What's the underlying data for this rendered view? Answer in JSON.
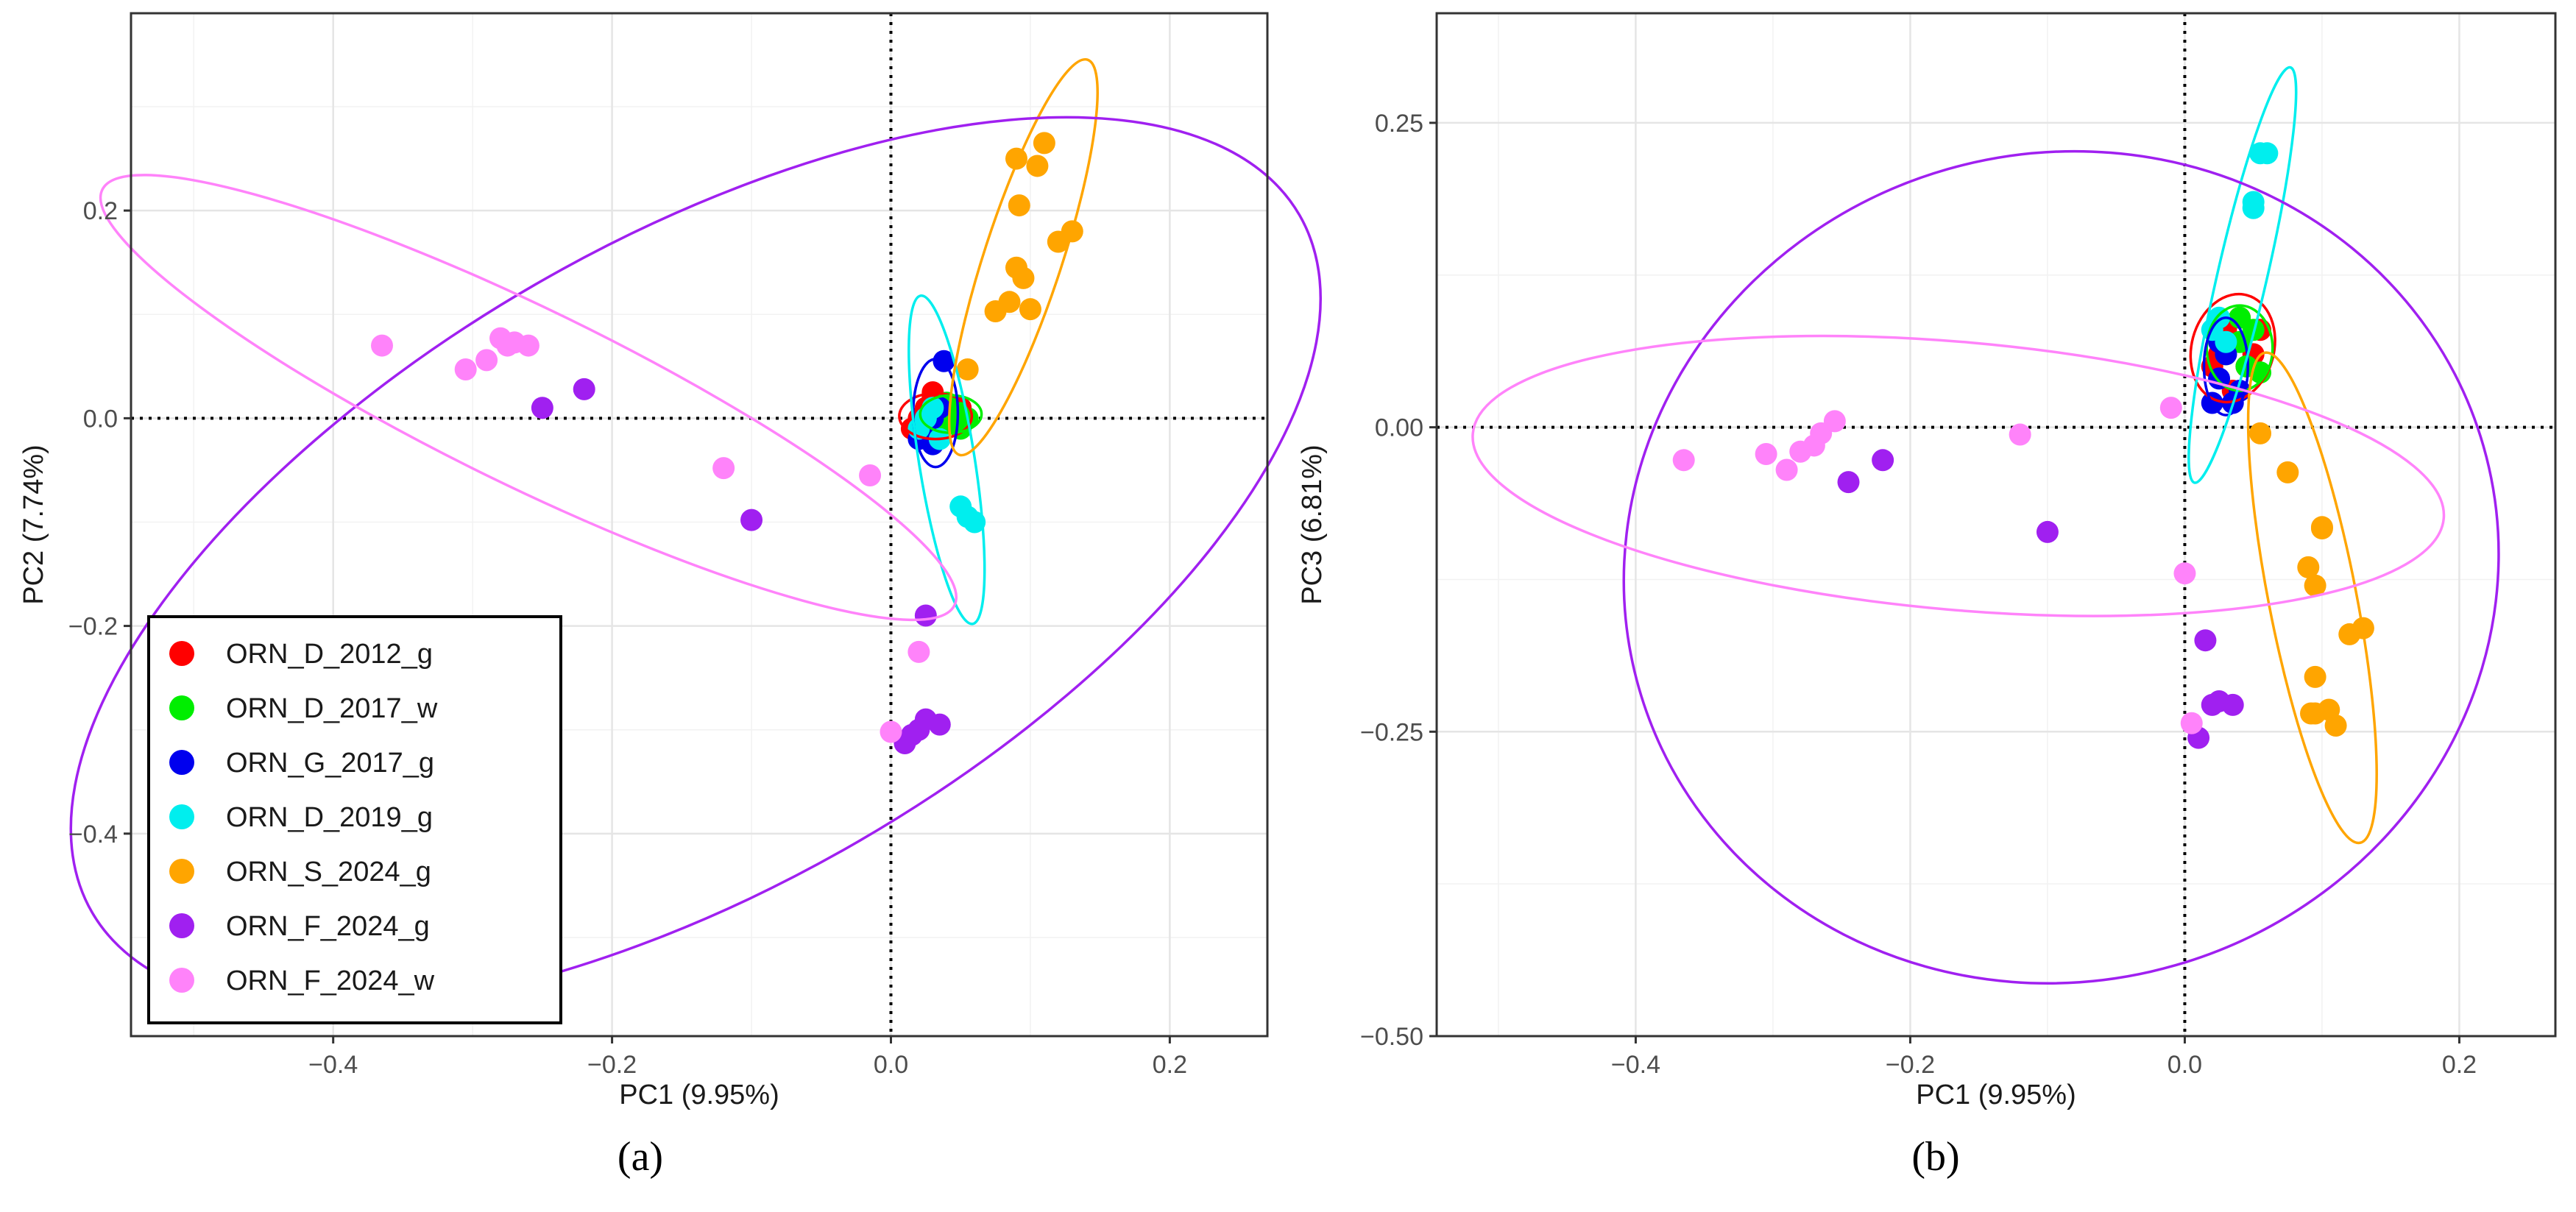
{
  "chart_data": [
    {
      "type": "scatter",
      "panel_label": "(a)",
      "panel_letter": "a",
      "xlabel": "PC1 (9.95%)",
      "ylabel": "PC2 (7.74%)",
      "xlim": [
        -0.545,
        0.27
      ],
      "ylim": [
        -0.595,
        0.39
      ],
      "xticks": [
        -0.4,
        -0.2,
        0.0,
        0.2
      ],
      "xtick_labels": [
        "−0.4",
        "−0.2",
        "0.0",
        "0.2"
      ],
      "yticks": [
        -0.4,
        -0.2,
        0.0,
        0.2
      ],
      "ytick_labels": [
        "−0.4",
        "−0.2",
        "0.0",
        "0.2"
      ],
      "xminor": [
        -0.5,
        -0.3,
        -0.1,
        0.1
      ],
      "yminor": [
        -0.5,
        -0.3,
        -0.1,
        0.1,
        0.3
      ],
      "grid": true,
      "reference_lines": {
        "x": 0,
        "y": 0,
        "style": "dotted"
      },
      "legend_position": "bottom-left",
      "series": [
        {
          "name": "ORN_D_2012_g",
          "color": "#FF0000",
          "x": [
            0.015,
            0.02,
            0.025,
            0.03,
            0.035,
            0.04,
            0.045,
            0.05,
            0.03,
            0.028
          ],
          "y": [
            -0.01,
            0.0,
            0.01,
            0.02,
            -0.005,
            0.01,
            0.0,
            0.01,
            0.025,
            -0.015
          ],
          "ellipse": {
            "cx": 0.032,
            "cy": 0.002,
            "rx": 0.026,
            "ry": 0.022,
            "angle": 0
          }
        },
        {
          "name": "ORN_D_2017_w",
          "color": "#00EE00",
          "x": [
            0.035,
            0.04,
            0.045,
            0.05,
            0.055,
            0.04,
            0.05
          ],
          "y": [
            0.0,
            0.01,
            -0.005,
            0.005,
            0.0,
            0.015,
            -0.01
          ],
          "ellipse": {
            "cx": 0.043,
            "cy": 0.004,
            "rx": 0.022,
            "ry": 0.018,
            "angle": 0
          }
        },
        {
          "name": "ORN_G_2017_g",
          "color": "#0000EE",
          "x": [
            0.02,
            0.025,
            0.03,
            0.035,
            0.038,
            0.03
          ],
          "y": [
            -0.02,
            -0.01,
            0.0,
            0.01,
            0.055,
            -0.025
          ],
          "ellipse": {
            "cx": 0.032,
            "cy": 0.005,
            "rx": 0.016,
            "ry": 0.052,
            "angle": 0
          }
        },
        {
          "name": "ORN_D_2019_g",
          "color": "#00EEEE",
          "x": [
            0.02,
            0.025,
            0.03,
            0.035,
            0.05,
            0.055,
            0.06
          ],
          "y": [
            -0.01,
            0.0,
            0.01,
            -0.02,
            -0.085,
            -0.095,
            -0.1
          ],
          "ellipse": {
            "cx": 0.04,
            "cy": -0.04,
            "rx": 0.02,
            "ry": 0.16,
            "angle": -9
          }
        },
        {
          "name": "ORN_S_2024_g",
          "color": "#FFA500",
          "x": [
            0.055,
            0.075,
            0.085,
            0.09,
            0.095,
            0.1,
            0.092,
            0.105,
            0.11,
            0.09,
            0.12,
            0.13
          ],
          "y": [
            0.047,
            0.103,
            0.112,
            0.145,
            0.135,
            0.105,
            0.205,
            0.243,
            0.265,
            0.25,
            0.17,
            0.18
          ],
          "ellipse": {
            "cx": 0.095,
            "cy": 0.155,
            "rx": 0.028,
            "ry": 0.2,
            "angle": 18
          }
        },
        {
          "name": "ORN_F_2024_g",
          "color": "#A020F0",
          "x": [
            -0.25,
            -0.22,
            -0.1,
            0.025,
            0.015,
            0.02,
            0.025,
            0.035,
            0.01
          ],
          "y": [
            0.01,
            0.028,
            -0.098,
            -0.19,
            -0.305,
            -0.3,
            -0.29,
            -0.295,
            -0.313
          ],
          "ellipse": {
            "cx": -0.14,
            "cy": -0.14,
            "rx": 0.5,
            "ry": 0.31,
            "angle": -30
          }
        },
        {
          "name": "ORN_F_2024_w",
          "color": "#FF83FA",
          "x": [
            -0.365,
            -0.305,
            -0.29,
            -0.28,
            -0.275,
            -0.27,
            -0.26,
            -0.12,
            -0.015,
            0.0,
            0.02
          ],
          "y": [
            0.07,
            0.047,
            0.056,
            0.077,
            0.07,
            0.073,
            0.07,
            -0.048,
            -0.055,
            -0.302,
            -0.225
          ],
          "ellipse": {
            "cx": -0.26,
            "cy": 0.02,
            "rx": 0.34,
            "ry": 0.085,
            "angle": 26
          }
        }
      ]
    },
    {
      "type": "scatter",
      "panel_label": "(b)",
      "panel_letter": "b",
      "xlabel": "PC1 (9.95%)",
      "ylabel": "PC3 (6.81%)",
      "xlim": [
        -0.545,
        0.27
      ],
      "ylim": [
        -0.5,
        0.34
      ],
      "xticks": [
        -0.4,
        -0.2,
        0.0,
        0.2
      ],
      "xtick_labels": [
        "−0.4",
        "−0.2",
        "0.0",
        "0.2"
      ],
      "yticks": [
        -0.5,
        -0.25,
        0.0,
        0.25
      ],
      "ytick_labels": [
        "−0.50",
        "−0.25",
        "0.00",
        "0.25"
      ],
      "xminor": [
        -0.5,
        -0.3,
        -0.1,
        0.1
      ],
      "yminor": [
        -0.375,
        -0.125,
        0.125
      ],
      "grid": true,
      "reference_lines": {
        "x": 0,
        "y": 0,
        "style": "dotted"
      },
      "legend_position": "none",
      "series": [
        {
          "name": "ORN_D_2012_g",
          "color": "#FF0000",
          "x": [
            0.02,
            0.025,
            0.03,
            0.035,
            0.04,
            0.045,
            0.05,
            0.055,
            0.035
          ],
          "y": [
            0.05,
            0.06,
            0.08,
            0.07,
            0.09,
            0.05,
            0.06,
            0.08,
            0.03
          ],
          "ellipse": {
            "cx": 0.035,
            "cy": 0.065,
            "rx": 0.03,
            "ry": 0.045,
            "angle": 15
          }
        },
        {
          "name": "ORN_D_2017_w",
          "color": "#00EE00",
          "x": [
            0.03,
            0.04,
            0.045,
            0.05,
            0.055,
            0.04
          ],
          "y": [
            0.06,
            0.07,
            0.05,
            0.08,
            0.045,
            0.09
          ],
          "ellipse": {
            "cx": 0.04,
            "cy": 0.065,
            "rx": 0.024,
            "ry": 0.035,
            "angle": 0
          }
        },
        {
          "name": "ORN_G_2017_g",
          "color": "#0000EE",
          "x": [
            0.02,
            0.025,
            0.03,
            0.035,
            0.04,
            0.025
          ],
          "y": [
            0.02,
            0.04,
            0.06,
            0.02,
            0.03,
            0.07
          ],
          "ellipse": {
            "cx": 0.03,
            "cy": 0.05,
            "rx": 0.016,
            "ry": 0.04,
            "angle": 0
          }
        },
        {
          "name": "ORN_D_2019_g",
          "color": "#00EEEE",
          "x": [
            0.02,
            0.025,
            0.03,
            0.05,
            0.055,
            0.06,
            0.05
          ],
          "y": [
            0.08,
            0.09,
            0.07,
            0.185,
            0.225,
            0.225,
            0.18
          ],
          "ellipse": {
            "cx": 0.042,
            "cy": 0.125,
            "rx": 0.018,
            "ry": 0.175,
            "angle": 13
          }
        },
        {
          "name": "ORN_S_2024_g",
          "color": "#FFA500",
          "x": [
            0.055,
            0.075,
            0.09,
            0.095,
            0.1,
            0.092,
            0.095,
            0.11,
            0.12,
            0.13,
            0.1,
            0.105,
            0.095
          ],
          "y": [
            -0.005,
            -0.037,
            -0.115,
            -0.13,
            -0.083,
            -0.235,
            -0.205,
            -0.245,
            -0.17,
            -0.165,
            -0.082,
            -0.232,
            -0.235
          ],
          "ellipse": {
            "cx": 0.093,
            "cy": -0.14,
            "rx": 0.032,
            "ry": 0.205,
            "angle": -11
          }
        },
        {
          "name": "ORN_F_2024_g",
          "color": "#A020F0",
          "x": [
            -0.245,
            -0.22,
            -0.1,
            0.015,
            0.025,
            0.035,
            0.01,
            0.02
          ],
          "y": [
            -0.045,
            -0.027,
            -0.086,
            -0.175,
            -0.225,
            -0.228,
            -0.255,
            -0.228
          ],
          "ellipse": {
            "cx": -0.09,
            "cy": -0.115,
            "rx": 0.32,
            "ry": 0.34,
            "angle": -16
          }
        },
        {
          "name": "ORN_F_2024_w",
          "color": "#FF83FA",
          "x": [
            -0.365,
            -0.305,
            -0.29,
            -0.28,
            -0.27,
            -0.265,
            -0.255,
            -0.12,
            -0.01,
            0.0,
            0.005
          ],
          "y": [
            -0.027,
            -0.022,
            -0.035,
            -0.02,
            -0.015,
            -0.005,
            0.005,
            -0.006,
            0.016,
            -0.12,
            -0.243
          ],
          "ellipse": {
            "cx": -0.165,
            "cy": -0.04,
            "rx": 0.355,
            "ry": 0.11,
            "angle": 5
          }
        }
      ]
    }
  ]
}
